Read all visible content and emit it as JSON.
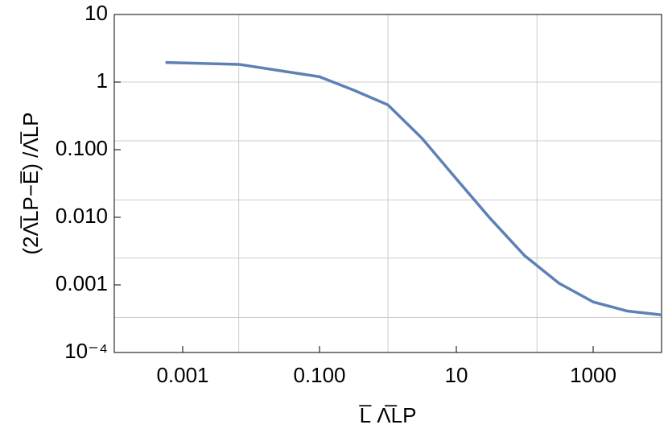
{
  "chart_data": {
    "type": "line",
    "xlabel": "L̅ Λ̅LP",
    "ylabel": "(2Λ̅LP−E̅) /Λ̅LP",
    "xscale": "log",
    "yscale": "log",
    "xlim": [
      0.0001,
      10000
    ],
    "ylim": [
      0.0001,
      10
    ],
    "xticks": [
      0.001,
      {
        "value": 0.1,
        "label": "0.100"
      },
      10,
      1000
    ],
    "yticks": [
      {
        "value": 0.0001,
        "label": "10⁻⁴"
      },
      0.001,
      {
        "value": 0.01,
        "label": "0.010"
      },
      {
        "value": 0.1,
        "label": "0.100"
      },
      1,
      10
    ],
    "xgrid": [
      0.0066,
      1,
      151
    ],
    "ygrid": [
      0.00033,
      0.0025,
      0.018,
      0.135,
      1
    ],
    "x": [
      0.00056,
      0.0066,
      0.1,
      0.316,
      1,
      3.16,
      10,
      31.6,
      100,
      316,
      1000,
      3160,
      10000
    ],
    "series": [
      {
        "name": "curve",
        "color": "#5e81b5",
        "values": [
          1.95,
          1.83,
          1.2,
          0.76,
          0.46,
          0.147,
          0.037,
          0.0095,
          0.0027,
          0.00106,
          0.00056,
          0.00041,
          0.00036
        ]
      }
    ]
  }
}
